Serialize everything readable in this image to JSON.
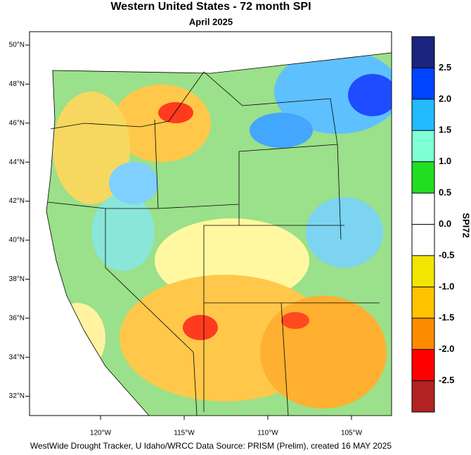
{
  "header": {
    "title": "Western United States - 72 month SPI",
    "subtitle": "April 2025"
  },
  "map": {
    "lat_labels": [
      "50°N",
      "48°N",
      "46°N",
      "44°N",
      "42°N",
      "40°N",
      "38°N",
      "36°N",
      "34°N",
      "32°N"
    ],
    "lon_labels": [
      "120°W",
      "115°W",
      "110°W",
      "105°W"
    ]
  },
  "colorbar": {
    "title": "SPI72",
    "lim": [
      -3,
      3
    ],
    "colors": [
      "#b22222",
      "#ff0000",
      "#ff8c00",
      "#ffc300",
      "#f0e600",
      "#ffffff",
      "#ffffff",
      "#22dd22",
      "#7fffd4",
      "#22bbff",
      "#0044ff",
      "#1a237e"
    ],
    "ticks": [
      -2.5,
      {
        "value": -2,
        "label": "-2.0"
      },
      -1.5,
      {
        "value": -1,
        "label": "-1.0"
      },
      -0.5,
      {
        "value": 0,
        "label": "0.0"
      },
      0.5,
      {
        "value": 1,
        "label": "1.0"
      },
      1.5,
      {
        "value": 2,
        "label": "2.0"
      },
      2.5
    ]
  },
  "footer": "WestWide Drought Tracker, U Idaho/WRCC Data Source: PRISM (Prelim), created 16 MAY 2025"
}
